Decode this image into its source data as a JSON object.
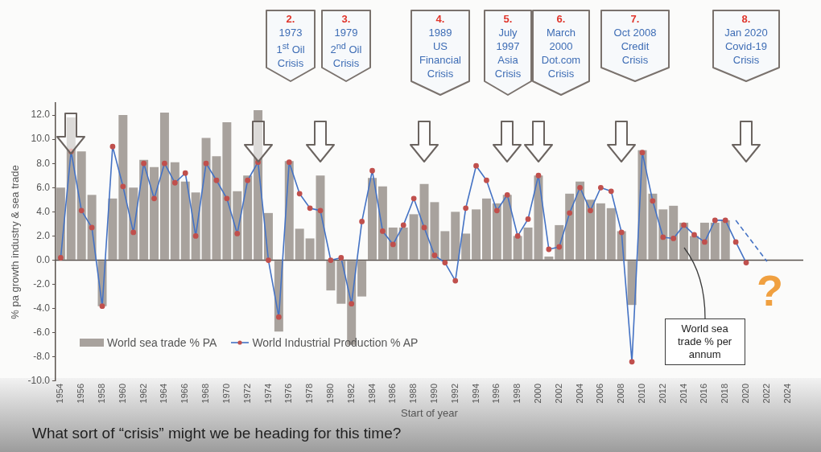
{
  "chart_data": {
    "type": "bar",
    "xlabel": "Start of year",
    "ylabel": "% pa growth industry & sea trade",
    "categories": [
      "1954",
      null,
      "1956",
      null,
      "1958",
      null,
      "1960",
      null,
      "1962",
      null,
      "1964",
      null,
      "1966",
      null,
      "1968",
      null,
      "1970",
      null,
      "1972",
      null,
      "1974",
      null,
      "1976",
      null,
      "1978",
      null,
      "1980",
      null,
      "1982",
      null,
      "1984",
      null,
      "1986",
      null,
      "1988",
      null,
      "1990",
      null,
      "1992",
      null,
      "1994",
      null,
      "1996",
      null,
      "1998",
      null,
      "2000",
      null,
      "2002",
      null,
      "2004",
      null,
      "2006",
      null,
      "2008",
      null,
      "2010",
      null,
      "2012",
      null,
      "2014",
      null,
      "2016",
      null,
      "2018",
      null,
      "2020",
      null,
      "2022",
      null,
      "2024",
      null
    ],
    "series": [
      {
        "name": "World sea trade % PA",
        "color": "#a8a29d",
        "values": [
          6.0,
          11.8,
          9.0,
          5.4,
          -3.8,
          5.1,
          12.0,
          6.0,
          8.3,
          7.7,
          12.2,
          8.1,
          6.5,
          5.6,
          10.1,
          8.6,
          11.4,
          5.7,
          7.0,
          12.4,
          3.9,
          -5.9,
          8.2,
          2.6,
          1.8,
          7.0,
          -2.5,
          -3.6,
          -7.0,
          -3.0,
          6.8,
          6.1,
          2.7,
          2.7,
          3.8,
          6.3,
          4.8,
          2.4,
          4.0,
          2.2,
          4.2,
          5.1,
          4.7,
          5.4,
          2.0,
          2.7,
          7.0,
          0.3,
          2.9,
          5.5,
          6.5,
          5.0,
          4.7,
          4.3,
          2.4,
          -3.7,
          9.1,
          5.5,
          4.2,
          4.5,
          3.1,
          2.0,
          3.1,
          3.1,
          3.3,
          null,
          null,
          null,
          null,
          null,
          null,
          null
        ]
      },
      {
        "name": "World Industrial Production % AP",
        "type": "line",
        "color": "#4472c4",
        "marker": "circle",
        "line_style": "solid",
        "colors": [
          "#c0504d",
          "#c0504d",
          "#c0504d",
          "#c0504d",
          "#c0504d",
          "#c0504d",
          "#c0504d",
          "#c0504d",
          "#c0504d",
          "#c0504d",
          "#c0504d",
          "#c0504d",
          "#c0504d",
          "#c0504d",
          "#c0504d",
          "#c0504d",
          "#c0504d",
          "#c0504d",
          "#c0504d",
          "#c0504d",
          "#c0504d",
          "#c0504d",
          "#c0504d",
          "#c0504d",
          "#c0504d",
          "#c0504d",
          "#c0504d",
          "#c0504d",
          "#c0504d",
          "#c0504d",
          "#c0504d",
          "#c0504d",
          "#c0504d",
          "#c0504d",
          "#c0504d",
          "#c0504d",
          "#c0504d",
          "#c0504d",
          "#c0504d",
          "#c0504d",
          "#c0504d",
          "#c0504d",
          "#c0504d",
          "#c0504d",
          "#c0504d",
          "#c0504d",
          "#c0504d",
          "#c0504d",
          "#c0504d",
          "#c0504d",
          "#c0504d",
          "#c0504d",
          "#c0504d",
          "#c0504d",
          "#c0504d",
          "#c0504d",
          "#c0504d",
          "#c0504d",
          "#c0504d",
          "#c0504d",
          "#c0504d",
          "#c0504d",
          "#c0504d",
          "#c0504d",
          "#c0504d",
          "#c0504d",
          "#c0504d",
          "#c0504d",
          "#c0504d",
          "#c0504d",
          "#c0504d",
          "#c0504d"
        ],
        "values": [
          0.2,
          9.0,
          4.1,
          2.7,
          -3.8,
          9.4,
          6.1,
          2.3,
          8.0,
          5.1,
          8.0,
          6.4,
          7.2,
          2.0,
          8.0,
          6.6,
          5.1,
          2.2,
          6.6,
          8.1,
          0.0,
          -4.7,
          8.1,
          5.5,
          4.3,
          4.1,
          0.0,
          0.2,
          -3.6,
          3.2,
          7.4,
          2.4,
          1.3,
          2.9,
          5.1,
          2.7,
          0.4,
          -0.2,
          -1.7,
          4.3,
          7.8,
          6.6,
          4.1,
          5.4,
          2.0,
          3.4,
          7.0,
          0.9,
          1.1,
          3.9,
          6.0,
          4.1,
          6.0,
          5.7,
          2.3,
          -8.4,
          8.9,
          4.9,
          1.9,
          1.8,
          2.9,
          2.1,
          1.5,
          3.3,
          3.3,
          1.5,
          -0.2,
          null,
          null,
          null,
          null,
          null
        ]
      },
      {
        "type": "line",
        "color": "#4472c4",
        "marker": "none",
        "line_style": "dashed",
        "values": [
          null,
          null,
          null,
          null,
          null,
          null,
          null,
          null,
          null,
          null,
          null,
          null,
          null,
          null,
          null,
          null,
          null,
          null,
          null,
          null,
          null,
          null,
          null,
          null,
          null,
          null,
          null,
          null,
          null,
          null,
          null,
          null,
          null,
          null,
          null,
          null,
          null,
          null,
          null,
          null,
          null,
          null,
          null,
          null,
          null,
          null,
          null,
          null,
          null,
          null,
          null,
          null,
          null,
          null,
          null,
          null,
          null,
          null,
          null,
          null,
          null,
          null,
          null,
          null,
          null,
          3.3,
          null,
          null,
          -0.1,
          null,
          null,
          null
        ]
      }
    ],
    "ylim": [
      -10,
      13
    ],
    "yticks": [
      {
        "value": -10,
        "label": "-10.0"
      },
      {
        "value": -8,
        "label": "-8.0"
      },
      {
        "value": -6,
        "label": "-6.0"
      },
      {
        "value": -4,
        "label": "-4.0"
      },
      {
        "value": -2,
        "label": "-2.0"
      },
      {
        "value": 0,
        "label": "0.0"
      },
      {
        "value": 2,
        "label": "2.0"
      },
      {
        "value": 4,
        "label": "4.0"
      },
      {
        "value": 6,
        "label": "6.0"
      },
      {
        "value": 8,
        "label": "8.0"
      },
      {
        "value": 10,
        "label": "10.0"
      },
      {
        "value": 12,
        "label": "12.0"
      }
    ],
    "legend": "bottom left",
    "annotations": [
      "2.\n1973\n1$^{st}$ Oil\nCrisis",
      "3.\n1979\n2$^{nd}$ Oil\nCrisis",
      "4.\n1989\nUS\nFinancial\nCrisis",
      "5.\nJuly\n1997\nAsia\nCrisis",
      "6.\nMarch\n2000\nDot.com\nCrisis",
      "7.\nOct 2008\nCredit\nCrisis",
      "8.\nJan 2020\nCovid-19\nCrisis",
      {
        "text": "World sea trade % per annum",
        "x": "2014",
        "y": 1.0
      },
      "?",
      "What sort of “crisis” might we be heading for this time?"
    ]
  }
}
